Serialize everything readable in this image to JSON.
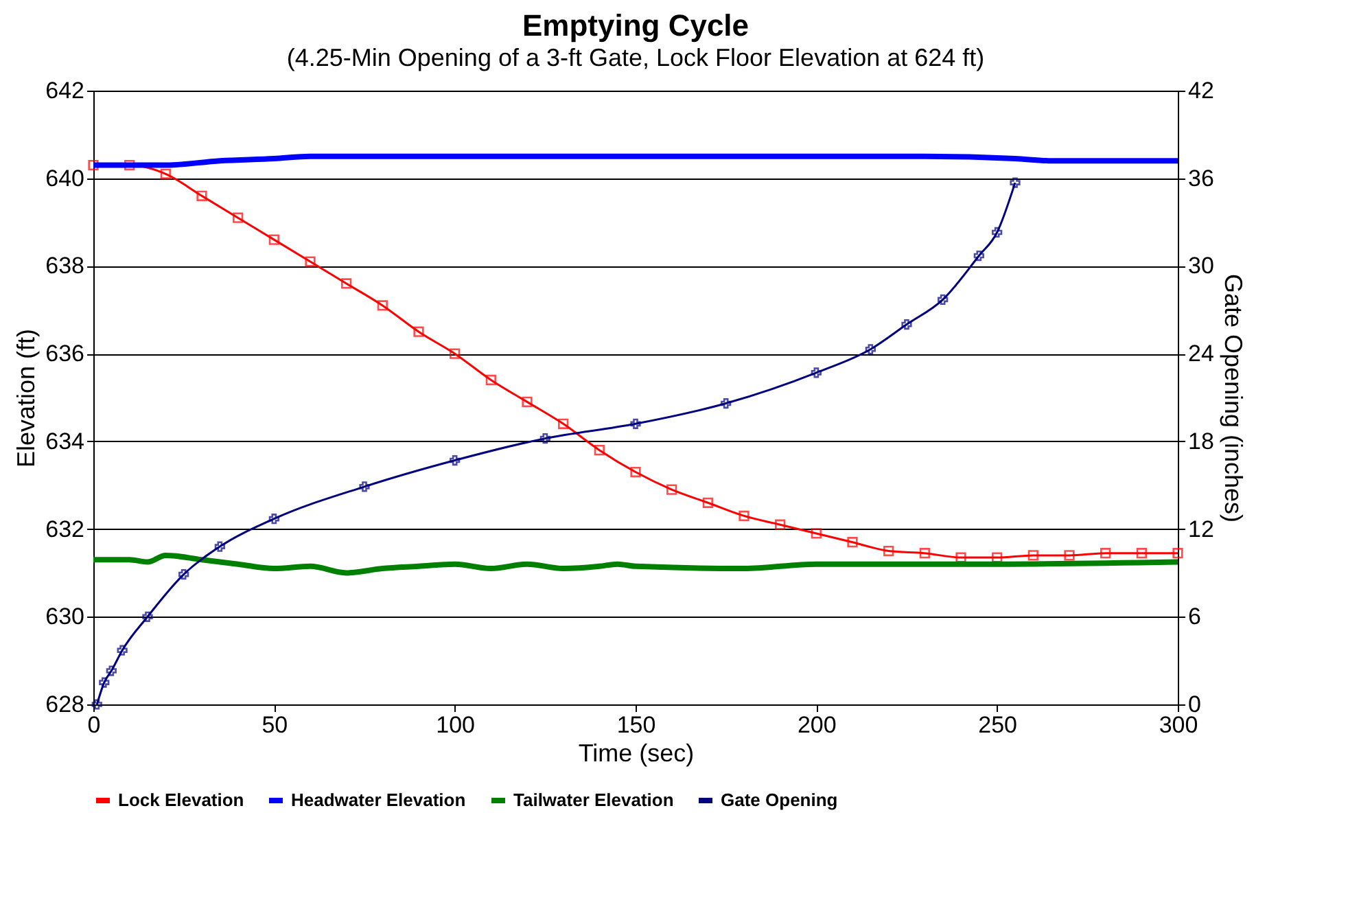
{
  "chart_data": {
    "type": "line",
    "title": "Emptying Cycle",
    "subtitle": "(4.25-Min Opening of a 3-ft Gate, Lock Floor Elevation at 624 ft)",
    "xlabel": "Time (sec)",
    "ylabel": "Elevation (ft)",
    "y2label": "Gate Opening (inches)",
    "xlim": [
      0,
      300
    ],
    "xticks": [
      0,
      50,
      100,
      150,
      200,
      250,
      300
    ],
    "ylim": [
      628,
      642
    ],
    "yticks": [
      628,
      630,
      632,
      634,
      636,
      638,
      640,
      642
    ],
    "y2lim": [
      0,
      42
    ],
    "y2ticks": [
      0,
      6,
      12,
      18,
      24,
      30,
      36,
      42
    ],
    "grid": "y",
    "legend": "bottom",
    "series": [
      {
        "name": "Lock Elevation",
        "color": "#ff0000",
        "marker": "square",
        "x": [
          0,
          10,
          20,
          30,
          40,
          50,
          60,
          70,
          80,
          90,
          100,
          110,
          120,
          130,
          140,
          150,
          160,
          170,
          180,
          190,
          200,
          210,
          220,
          230,
          240,
          250,
          260,
          270,
          280,
          290,
          300
        ],
        "values": [
          640.3,
          640.3,
          640.1,
          639.6,
          639.1,
          638.6,
          638.1,
          637.6,
          637.1,
          636.5,
          636.0,
          635.4,
          634.9,
          634.4,
          633.8,
          633.3,
          632.9,
          632.6,
          632.3,
          632.1,
          631.9,
          631.7,
          631.5,
          631.45,
          631.35,
          631.35,
          631.4,
          631.4,
          631.45,
          631.45,
          631.45
        ]
      },
      {
        "name": "Headwater Elevation",
        "color": "#0000ff",
        "marker": "none",
        "x": [
          0,
          20,
          35,
          50,
          60,
          100,
          150,
          200,
          230,
          255,
          265,
          300
        ],
        "values": [
          640.3,
          640.3,
          640.4,
          640.45,
          640.5,
          640.5,
          640.5,
          640.5,
          640.5,
          640.45,
          640.4,
          640.4
        ]
      },
      {
        "name": "Tailwater Elevation",
        "color": "#008000",
        "marker": "none",
        "x": [
          0,
          10,
          15,
          20,
          30,
          40,
          50,
          60,
          70,
          80,
          90,
          100,
          110,
          120,
          130,
          140,
          145,
          150,
          180,
          200,
          250,
          300
        ],
        "values": [
          631.3,
          631.3,
          631.25,
          631.4,
          631.3,
          631.2,
          631.1,
          631.15,
          631.0,
          631.1,
          631.15,
          631.2,
          631.1,
          631.2,
          631.1,
          631.15,
          631.2,
          631.15,
          631.1,
          631.2,
          631.2,
          631.25
        ]
      },
      {
        "name": "Gate Opening",
        "color": "#000080",
        "marker": "cross",
        "axis": "y2",
        "x": [
          1,
          3,
          5,
          8,
          15,
          25,
          35,
          50,
          75,
          100,
          125,
          150,
          175,
          200,
          215,
          225,
          235,
          245,
          250,
          255
        ],
        "values": [
          0,
          1.5,
          2.3,
          3.7,
          6.0,
          8.9,
          10.8,
          12.7,
          14.9,
          16.7,
          18.2,
          19.2,
          20.6,
          22.7,
          24.3,
          26.0,
          27.7,
          30.7,
          32.3,
          35.7
        ]
      }
    ]
  }
}
